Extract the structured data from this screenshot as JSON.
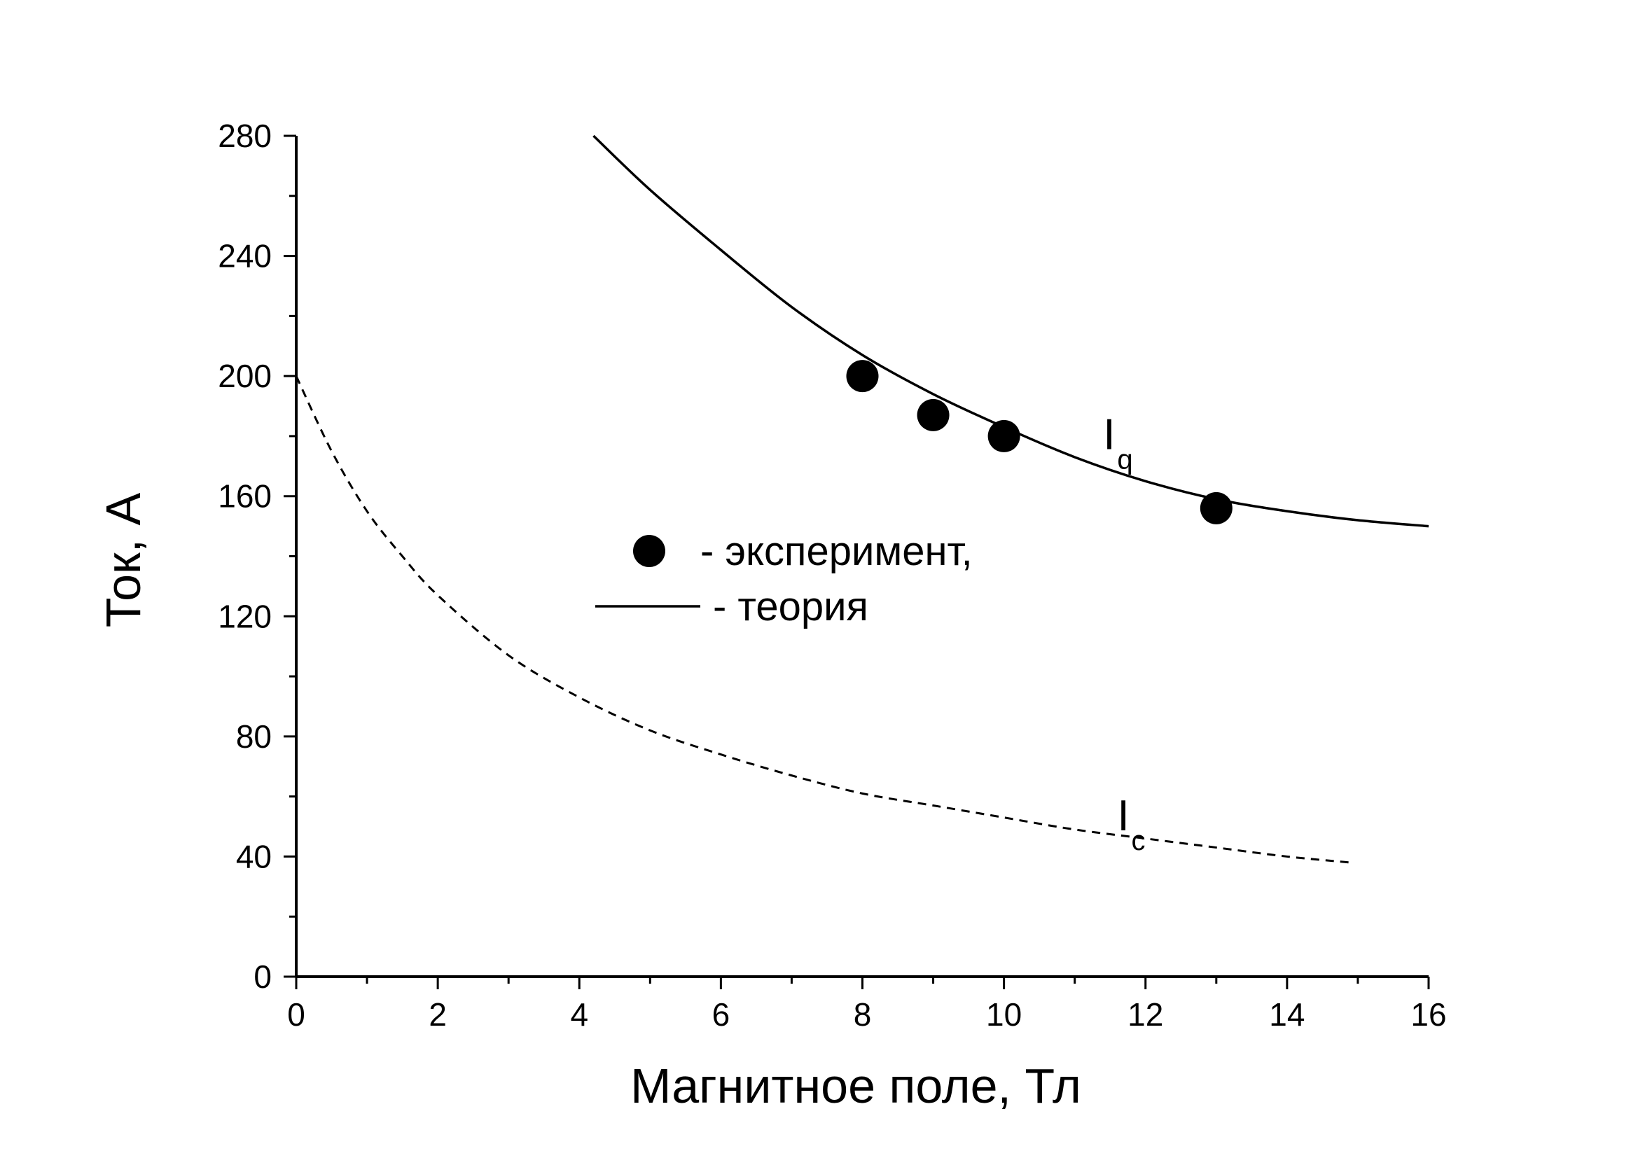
{
  "chart_data": {
    "type": "scatter",
    "xlabel": "Магнитное поле, Тл",
    "ylabel": "Ток, А",
    "xlim": [
      0,
      16
    ],
    "ylim": [
      0,
      280
    ],
    "xticks": [
      0,
      2,
      4,
      6,
      8,
      10,
      12,
      14,
      16
    ],
    "yticks": [
      0,
      40,
      80,
      120,
      160,
      200,
      240,
      280
    ],
    "grid": false,
    "series": [
      {
        "name": "- эксперимент,",
        "kind": "scatter",
        "marker": "filled-circle",
        "x": [
          8,
          9,
          10,
          13
        ],
        "y": [
          200,
          187,
          180,
          156
        ]
      },
      {
        "name": "- теория",
        "kind": "line",
        "line_style": "solid",
        "curve_label": "I",
        "curve_label_sub": "q",
        "x": [
          4.2,
          5,
          6,
          7,
          8,
          9,
          10,
          11,
          12,
          13,
          14,
          15,
          16
        ],
        "y": [
          280,
          262,
          242,
          223,
          207,
          194,
          183,
          173,
          165,
          159,
          155,
          152,
          150
        ]
      },
      {
        "name": "",
        "kind": "line",
        "line_style": "dashed",
        "curve_label": "I",
        "curve_label_sub": "c",
        "x": [
          0,
          0.5,
          1,
          1.5,
          2,
          3,
          4,
          5,
          6,
          7,
          8,
          9,
          10,
          11,
          12,
          13,
          14,
          14.9
        ],
        "y": [
          200,
          175,
          155,
          140,
          127,
          107,
          93,
          82,
          74,
          67,
          61,
          57,
          53,
          49,
          46,
          43,
          40,
          38
        ]
      }
    ],
    "legend": {
      "placement": "center",
      "entries": [
        "- эксперимент,",
        "- теория"
      ]
    }
  }
}
